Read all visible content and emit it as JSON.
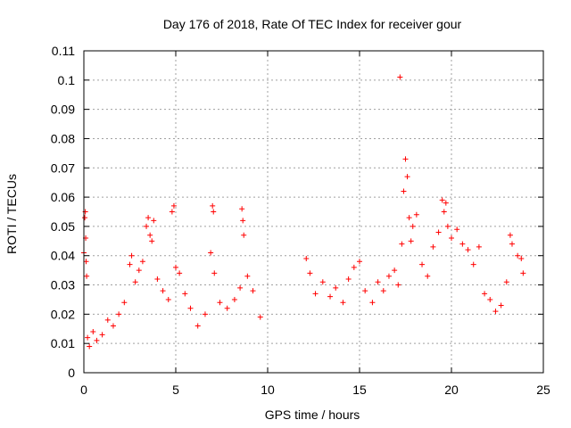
{
  "chart_data": {
    "type": "scatter",
    "title": "Day 176 of 2018, Rate Of TEC Index for receiver gour",
    "xlabel": "GPS time / hours",
    "ylabel": "ROTI / TECUs",
    "xlim": [
      0,
      25
    ],
    "ylim": [
      0,
      0.11
    ],
    "x_ticks": [
      0,
      5,
      10,
      15,
      20,
      25
    ],
    "x_tick_labels": [
      "0",
      "5",
      "10",
      "15",
      "20",
      "25"
    ],
    "y_ticks": [
      0,
      0.01,
      0.02,
      0.03,
      0.04,
      0.05,
      0.06,
      0.07,
      0.08,
      0.09,
      0.1,
      0.11
    ],
    "y_tick_labels": [
      "0",
      "0.01",
      "0.02",
      "0.03",
      "0.04",
      "0.05",
      "0.06",
      "0.07",
      "0.08",
      "0.09",
      "0.1",
      "0.11"
    ],
    "grid": true,
    "marker": "+",
    "marker_color": "#ff0000",
    "series": [
      {
        "points": [
          [
            0.0,
            0.041
          ],
          [
            0.05,
            0.053
          ],
          [
            0.08,
            0.055
          ],
          [
            0.1,
            0.046
          ],
          [
            0.12,
            0.038
          ],
          [
            0.15,
            0.033
          ],
          [
            0.2,
            0.012
          ],
          [
            0.3,
            0.009
          ],
          [
            0.5,
            0.014
          ],
          [
            0.7,
            0.011
          ],
          [
            1.0,
            0.013
          ],
          [
            1.3,
            0.018
          ],
          [
            1.6,
            0.016
          ],
          [
            1.9,
            0.02
          ],
          [
            2.2,
            0.024
          ],
          [
            2.5,
            0.037
          ],
          [
            2.6,
            0.04
          ],
          [
            2.8,
            0.031
          ],
          [
            3.0,
            0.035
          ],
          [
            3.2,
            0.038
          ],
          [
            3.4,
            0.05
          ],
          [
            3.5,
            0.053
          ],
          [
            3.6,
            0.047
          ],
          [
            3.7,
            0.045
          ],
          [
            3.8,
            0.052
          ],
          [
            4.0,
            0.032
          ],
          [
            4.3,
            0.028
          ],
          [
            4.6,
            0.025
          ],
          [
            4.8,
            0.055
          ],
          [
            4.9,
            0.057
          ],
          [
            5.0,
            0.036
          ],
          [
            5.2,
            0.034
          ],
          [
            5.5,
            0.027
          ],
          [
            5.8,
            0.022
          ],
          [
            6.2,
            0.016
          ],
          [
            6.6,
            0.02
          ],
          [
            6.9,
            0.041
          ],
          [
            7.0,
            0.057
          ],
          [
            7.05,
            0.055
          ],
          [
            7.1,
            0.034
          ],
          [
            7.4,
            0.024
          ],
          [
            7.8,
            0.022
          ],
          [
            8.2,
            0.025
          ],
          [
            8.5,
            0.029
          ],
          [
            8.6,
            0.056
          ],
          [
            8.65,
            0.052
          ],
          [
            8.7,
            0.047
          ],
          [
            8.9,
            0.033
          ],
          [
            9.2,
            0.028
          ],
          [
            9.6,
            0.019
          ],
          [
            12.1,
            0.039
          ],
          [
            12.3,
            0.034
          ],
          [
            12.6,
            0.027
          ],
          [
            13.0,
            0.031
          ],
          [
            13.4,
            0.026
          ],
          [
            13.7,
            0.029
          ],
          [
            14.1,
            0.024
          ],
          [
            14.4,
            0.032
          ],
          [
            14.7,
            0.036
          ],
          [
            15.0,
            0.038
          ],
          [
            15.3,
            0.028
          ],
          [
            15.7,
            0.024
          ],
          [
            16.0,
            0.031
          ],
          [
            16.3,
            0.028
          ],
          [
            16.6,
            0.033
          ],
          [
            16.9,
            0.035
          ],
          [
            17.1,
            0.03
          ],
          [
            17.2,
            0.101
          ],
          [
            17.3,
            0.044
          ],
          [
            17.4,
            0.062
          ],
          [
            17.5,
            0.073
          ],
          [
            17.6,
            0.067
          ],
          [
            17.7,
            0.053
          ],
          [
            17.8,
            0.045
          ],
          [
            17.9,
            0.05
          ],
          [
            18.1,
            0.054
          ],
          [
            18.4,
            0.037
          ],
          [
            18.7,
            0.033
          ],
          [
            19.0,
            0.043
          ],
          [
            19.3,
            0.048
          ],
          [
            19.5,
            0.059
          ],
          [
            19.6,
            0.055
          ],
          [
            19.7,
            0.058
          ],
          [
            19.8,
            0.05
          ],
          [
            20.0,
            0.046
          ],
          [
            20.3,
            0.049
          ],
          [
            20.6,
            0.044
          ],
          [
            20.9,
            0.042
          ],
          [
            21.2,
            0.037
          ],
          [
            21.5,
            0.043
          ],
          [
            21.8,
            0.027
          ],
          [
            22.1,
            0.025
          ],
          [
            22.4,
            0.021
          ],
          [
            22.7,
            0.023
          ],
          [
            23.0,
            0.031
          ],
          [
            23.2,
            0.047
          ],
          [
            23.3,
            0.044
          ],
          [
            23.6,
            0.04
          ],
          [
            23.8,
            0.039
          ],
          [
            23.9,
            0.034
          ]
        ]
      }
    ]
  }
}
